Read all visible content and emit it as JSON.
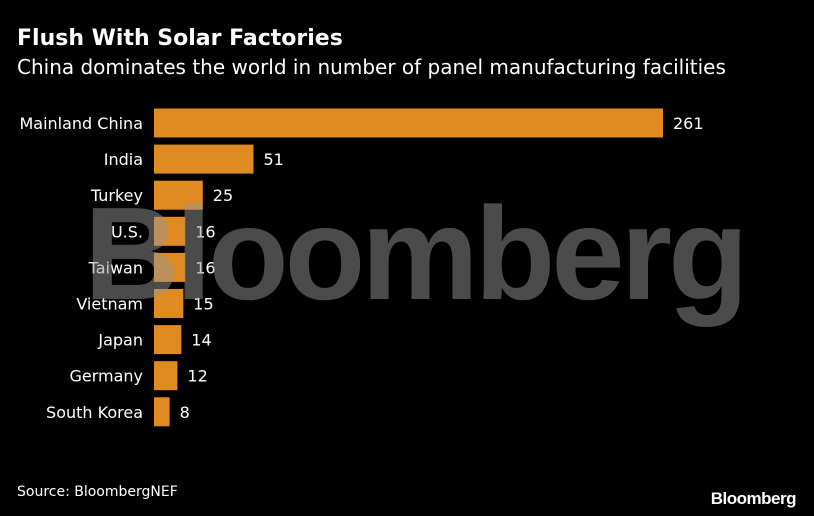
{
  "chart_data": {
    "type": "bar",
    "orientation": "horizontal",
    "title": "Flush With Solar Factories",
    "subtitle": "China dominates the world in number of panel manufacturing facilities",
    "categories": [
      "Mainland China",
      "India",
      "Turkey",
      "U.S.",
      "Taiwan",
      "Vietnam",
      "Japan",
      "Germany",
      "South Korea"
    ],
    "values": [
      261,
      51,
      25,
      16,
      16,
      15,
      14,
      12,
      8
    ],
    "xlim": [
      0,
      261
    ],
    "xlabel": "",
    "ylabel": "",
    "grid": false,
    "legend": "none",
    "bar_color": "#e08a22"
  },
  "source": "Source: BloombergNEF",
  "watermark": "Bloomberg",
  "logo": "Bloomberg"
}
